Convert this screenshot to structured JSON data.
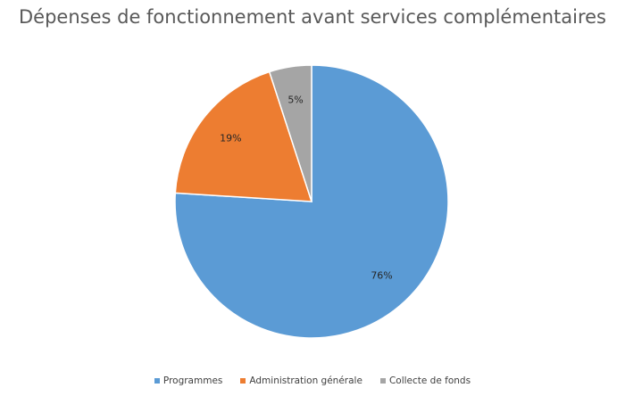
{
  "chart_data": {
    "type": "pie",
    "title": "Dépenses de fonctionnement avant services complémentaires",
    "slices": [
      {
        "name": "Programmes",
        "value": 76,
        "label": "76%",
        "color": "#5b9bd5"
      },
      {
        "name": "Administration générale",
        "value": 19,
        "label": "19%",
        "color": "#ed7d31"
      },
      {
        "name": "Collecte de fonds",
        "value": 5,
        "label": "5%",
        "color": "#a5a5a5"
      }
    ],
    "start": "12 o'clock",
    "direction": "clockwise",
    "legend": "bottom"
  }
}
